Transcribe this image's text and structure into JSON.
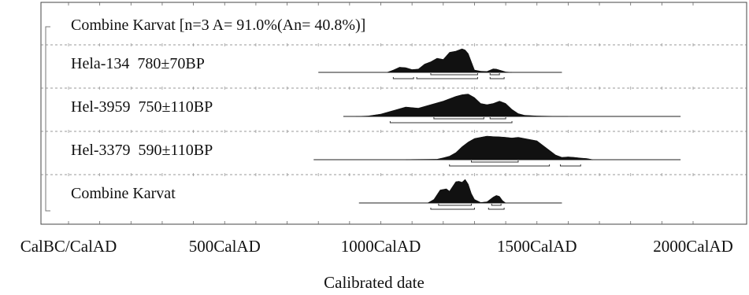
{
  "chart_data": {
    "type": "area",
    "title": "",
    "xlabel": "Calibrated date",
    "ylabel": "",
    "x_unit": "year AD",
    "xlim": [
      0,
      2000
    ],
    "tick_labels": [
      "CalBC/CalAD",
      "500CalAD",
      "1000CalAD",
      "1500CalAD",
      "2000CalAD"
    ],
    "tick_values": [
      0,
      500,
      1000,
      1500,
      2000
    ],
    "grid": "dashed horizontal row separators",
    "bracket_label": "Combine Karvat [n=3 A= 91.0%(An= 40.8%)]",
    "rows": [
      {
        "label": "Hela-134  780±70BP",
        "baseline": [
          800,
          1580
        ],
        "x": [
          1020,
          1040,
          1060,
          1080,
          1100,
          1120,
          1140,
          1160,
          1180,
          1200,
          1220,
          1240,
          1260,
          1270,
          1280,
          1300,
          1320,
          1340,
          1360,
          1370,
          1380,
          1400,
          1420
        ],
        "y": [
          0,
          0.1,
          0.22,
          0.2,
          0.12,
          0.14,
          0.35,
          0.45,
          0.6,
          0.55,
          0.85,
          0.9,
          1.0,
          0.95,
          0.8,
          0.1,
          0.05,
          0.04,
          0.15,
          0.14,
          0.1,
          0.02,
          0
        ],
        "ranges_68": [
          [
            1160,
            1310
          ],
          [
            1350,
            1380
          ]
        ],
        "ranges_95": [
          [
            1040,
            1105
          ],
          [
            1115,
            1310
          ],
          [
            1350,
            1395
          ]
        ]
      },
      {
        "label": "Hel-3959  750±110BP",
        "baseline": [
          880,
          1960
        ],
        "x": [
          920,
          960,
          1000,
          1040,
          1080,
          1120,
          1160,
          1200,
          1240,
          1260,
          1280,
          1300,
          1320,
          1340,
          1360,
          1380,
          1400,
          1420,
          1440,
          1460,
          1500,
          1540,
          1600
        ],
        "y": [
          0,
          0.02,
          0.1,
          0.25,
          0.4,
          0.35,
          0.5,
          0.65,
          0.85,
          0.92,
          0.95,
          0.8,
          0.55,
          0.5,
          0.55,
          0.65,
          0.55,
          0.3,
          0.12,
          0.05,
          0.02,
          0.01,
          0
        ],
        "ranges_68": [
          [
            1170,
            1330
          ],
          [
            1350,
            1400
          ]
        ],
        "ranges_95": [
          [
            1030,
            1420
          ]
        ]
      },
      {
        "label": "Hel-3379  590±110BP",
        "baseline": [
          785,
          1960
        ],
        "x": [
          1080,
          1100,
          1180,
          1200,
          1220,
          1240,
          1260,
          1280,
          1300,
          1320,
          1340,
          1360,
          1380,
          1400,
          1420,
          1440,
          1460,
          1480,
          1500,
          1520,
          1560,
          1580,
          1600,
          1620,
          1640,
          1660,
          1680
        ],
        "y": [
          0,
          0.01,
          0.02,
          0.08,
          0.15,
          0.3,
          0.55,
          0.75,
          0.9,
          0.95,
          1.0,
          0.98,
          0.97,
          0.95,
          0.92,
          0.95,
          0.9,
          0.85,
          0.8,
          0.6,
          0.2,
          0.1,
          0.12,
          0.1,
          0.07,
          0.05,
          0
        ],
        "ranges_68": [
          [
            1290,
            1440
          ]
        ],
        "ranges_95": [
          [
            1220,
            1540
          ],
          [
            1575,
            1640
          ]
        ]
      },
      {
        "label": "Combine Karvat",
        "baseline": [
          930,
          1580
        ],
        "x": [
          1150,
          1170,
          1190,
          1210,
          1220,
          1240,
          1250,
          1260,
          1270,
          1280,
          1290,
          1300,
          1320,
          1340,
          1360,
          1370,
          1380,
          1390,
          1400
        ],
        "y": [
          0,
          0.15,
          0.55,
          0.6,
          0.5,
          0.9,
          0.92,
          0.88,
          1.0,
          0.8,
          0.4,
          0.15,
          0.02,
          0.05,
          0.25,
          0.32,
          0.28,
          0.1,
          0
        ],
        "ranges_68": [
          [
            1185,
            1290
          ],
          [
            1355,
            1385
          ]
        ],
        "ranges_95": [
          [
            1160,
            1300
          ],
          [
            1345,
            1395
          ]
        ]
      }
    ]
  }
}
